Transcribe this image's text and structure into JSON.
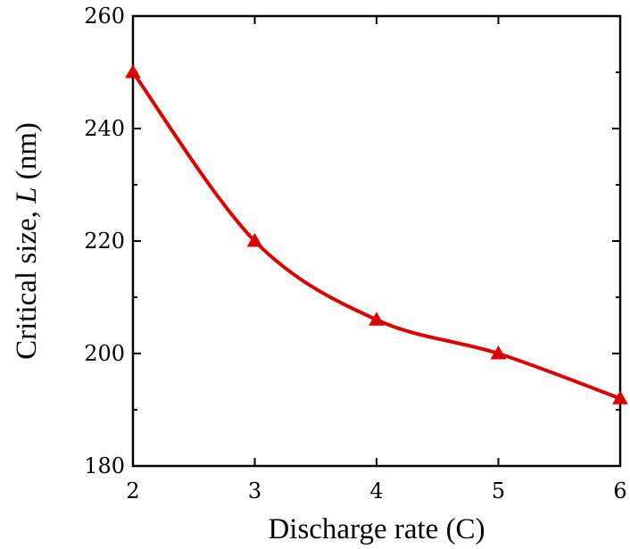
{
  "chart_data": {
    "type": "line",
    "title": "",
    "xlabel": "Discharge rate (C)",
    "ylabel_prefix": "Critical size, ",
    "ylabel_var": "L",
    "ylabel_suffix": " (nm)",
    "xlim": [
      2,
      6
    ],
    "ylim": [
      180,
      260
    ],
    "x_ticks": [
      2,
      3,
      4,
      5,
      6
    ],
    "y_ticks": [
      180,
      200,
      220,
      240,
      260
    ],
    "grid": false,
    "series": [
      {
        "x": [
          2,
          3,
          4,
          5,
          6
        ],
        "y": [
          250,
          220,
          206,
          200,
          192
        ],
        "color": "#dd0000",
        "marker": "triangle"
      }
    ]
  }
}
